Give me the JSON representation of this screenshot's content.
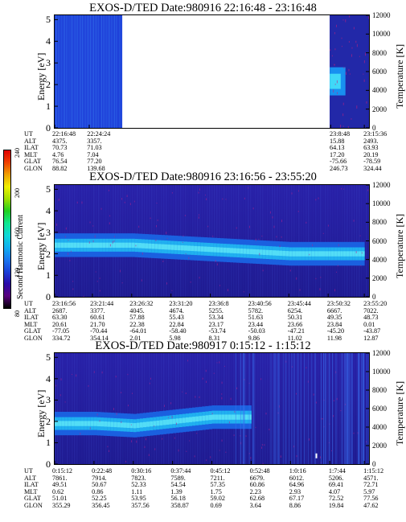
{
  "colorbar": {
    "label": "Second Harmonic Current",
    "ticks": [
      "80",
      "120",
      "160",
      "200",
      "240"
    ],
    "colors": [
      "#000000",
      "#5a007f",
      "#2a0aa8",
      "#1a40d8",
      "#1a78f0",
      "#10b0f0",
      "#10d8d8",
      "#10e890",
      "#20d020",
      "#a0e000",
      "#f0f000",
      "#f0a000",
      "#f04000",
      "#e00000"
    ]
  },
  "panels": [
    {
      "title": "EXOS-D/TED   Date:980916  22:16:48 - 23:16:48",
      "ylabel_left": "Energy [eV]",
      "ylabel_right": "Temperature [K]",
      "y_ticks_left": [
        "0",
        "1",
        "2",
        "3",
        "4",
        "5"
      ],
      "y_ticks_right": [
        "0",
        "2000",
        "4000",
        "6000",
        "8000",
        "10000",
        "12000"
      ],
      "ephemeris_labels": [
        "UT",
        "ALT",
        "ILAT",
        "MLT",
        "GLAT",
        "GLON"
      ],
      "ephemeris_columns": [
        {
          "values": [
            "22:16:48",
            "4375.",
            "70.73",
            "4.76",
            "76.54",
            "88.82"
          ]
        },
        {
          "values": [
            "22:24:24",
            "3357.",
            "71.03",
            "7.04",
            "77.20",
            "139.68"
          ]
        },
        {
          "values": [
            "23:8:48",
            "15.88",
            "64.13",
            "17.20",
            "-75.66",
            "246.73"
          ]
        },
        {
          "values": [
            "23:15:36",
            "2493.",
            "63.93",
            "20.19",
            "-78.59",
            "324.44"
          ]
        }
      ]
    },
    {
      "title": "EXOS-D/TED   Date:980916  23:16:56 - 23:55:20",
      "ylabel_left": "Energy [eV]",
      "ylabel_right": "Temperature [K]",
      "y_ticks_left": [
        "0",
        "1",
        "2",
        "3",
        "4",
        "5"
      ],
      "y_ticks_right": [
        "0",
        "2000",
        "4000",
        "6000",
        "8000",
        "10000",
        "12000"
      ],
      "ephemeris_labels": [
        "UT",
        "ALT",
        "ILAT",
        "MLT",
        "GLAT",
        "GLON"
      ],
      "ephemeris_columns": [
        {
          "values": [
            "23:16:56",
            "2687.",
            "63.30",
            "20.61",
            "-77.05",
            "334.72"
          ]
        },
        {
          "values": [
            "23:21:44",
            "3377.",
            "60.61",
            "21.70",
            "-70.44",
            "354.14"
          ]
        },
        {
          "values": [
            "23:26:32",
            "4045.",
            "57.88",
            "22.38",
            "-64.01",
            "2.01"
          ]
        },
        {
          "values": [
            "23:31:20",
            "4674.",
            "55.43",
            "22.84",
            "-58.40",
            "5.98"
          ]
        },
        {
          "values": [
            "23:36:8",
            "5255.",
            "53.34",
            "23.17",
            "-53.74",
            "8.31"
          ]
        },
        {
          "values": [
            "23:40:56",
            "5782.",
            "51.63",
            "23.44",
            "-50.03",
            "9.86"
          ]
        },
        {
          "values": [
            "23:45:44",
            "6254.",
            "50.31",
            "23.66",
            "-47.21",
            "11.02"
          ]
        },
        {
          "values": [
            "23:50:32",
            "6667.",
            "49.35",
            "23.84",
            "-45.20",
            "11.98"
          ]
        },
        {
          "values": [
            "23:55:20",
            "7022.",
            "48.73",
            "0.01",
            "-43.87",
            "12.87"
          ]
        }
      ]
    },
    {
      "title": "EXOS-D/TED   Date:980917  0:15:12 - 1:15:12",
      "ylabel_left": "Energy [eV]",
      "ylabel_right": "Temperature [K]",
      "y_ticks_left": [
        "0",
        "1",
        "2",
        "3",
        "4",
        "5"
      ],
      "y_ticks_right": [
        "0",
        "2000",
        "4000",
        "6000",
        "8000",
        "10000",
        "12000"
      ],
      "ephemeris_labels": [
        "UT",
        "ALT",
        "ILAT",
        "MLT",
        "GLAT",
        "GLON"
      ],
      "ephemeris_columns": [
        {
          "values": [
            "0:15:12",
            "7861.",
            "49.51",
            "0.62",
            "51.01",
            "355.29"
          ]
        },
        {
          "values": [
            "0:22:48",
            "7914.",
            "50.67",
            "0.86",
            "52.25",
            "356.45"
          ]
        },
        {
          "values": [
            "0:30:16",
            "7823.",
            "52.33",
            "1.11",
            "53.95",
            "357.56"
          ]
        },
        {
          "values": [
            "0:37:44",
            "7589.",
            "54.54",
            "1.39",
            "56.18",
            "358.87"
          ]
        },
        {
          "values": [
            "0:45:12",
            "7211.",
            "57.35",
            "1.75",
            "59.02",
            "0.69"
          ]
        },
        {
          "values": [
            "0:52:48",
            "6679.",
            "60.86",
            "2.23",
            "62.68",
            "3.64"
          ]
        },
        {
          "values": [
            "1:0:16",
            "6012.",
            "64.96",
            "2.93",
            "67.17",
            "8.86"
          ]
        },
        {
          "values": [
            "1:7:44",
            "5206.",
            "69.41",
            "4.07",
            "72.52",
            "19.84"
          ]
        },
        {
          "values": [
            "1:15:12",
            "4571.",
            "72.71",
            "5.97",
            "77.56",
            "47.62"
          ]
        }
      ]
    }
  ],
  "chart_data": [
    {
      "type": "heatmap",
      "title": "EXOS-D/TED   Date:980916  22:16:48 - 23:16:48",
      "xlabel": "UT",
      "ylabel": "Energy [eV]",
      "ylabel_right": "Temperature [K]",
      "ylim": [
        0,
        5.2
      ],
      "ylim_right": [
        0,
        12000
      ],
      "x_ticks": [
        "22:16:48",
        "22:24:24",
        "23:8:48",
        "23:15:36"
      ],
      "segments": [
        {
          "from": "22:16:48",
          "to": "22:24:24",
          "description_values": {
            "background_level": "high"
          }
        },
        {
          "from": "23:8:48",
          "to": "23:15:36",
          "band_energy_eV": [
            1.5,
            2.8
          ]
        }
      ]
    },
    {
      "type": "heatmap",
      "title": "EXOS-D/TED   Date:980916  23:16:56 - 23:55:20",
      "xlabel": "UT",
      "ylabel": "Energy [eV]",
      "ylabel_right": "Temperature [K]",
      "ylim": [
        0,
        5.2
      ],
      "ylim_right": [
        0,
        12000
      ],
      "x_ticks": [
        "23:16:56",
        "23:21:44",
        "23:26:32",
        "23:31:20",
        "23:36:8",
        "23:40:56",
        "23:45:44",
        "23:50:32",
        "23:55:20"
      ],
      "band_center_eV": [
        2.4,
        2.4,
        2.4,
        2.3,
        2.2,
        2.1,
        2.0,
        2.0,
        2.0
      ]
    },
    {
      "type": "heatmap",
      "title": "EXOS-D/TED   Date:980917  0:15:12 - 1:15:12",
      "xlabel": "UT",
      "ylabel": "Energy [eV]",
      "ylabel_right": "Temperature [K]",
      "ylim": [
        0,
        5.2
      ],
      "ylim_right": [
        0,
        12000
      ],
      "x_ticks": [
        "0:15:12",
        "0:22:48",
        "0:30:16",
        "0:37:44",
        "0:45:12",
        "0:52:48",
        "1:0:16",
        "1:7:44",
        "1:15:12"
      ],
      "band_center_eV": [
        1.9,
        1.9,
        1.8,
        2.0,
        2.2,
        null,
        null,
        null,
        null
      ]
    }
  ]
}
